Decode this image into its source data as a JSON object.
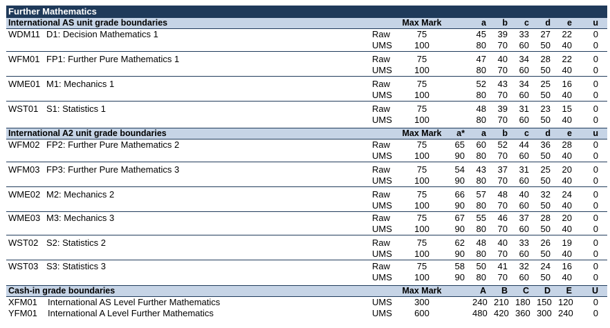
{
  "title": "Further Mathematics",
  "as_header": {
    "label": "International AS unit grade boundaries",
    "max_mark": "Max Mark",
    "grades": [
      "",
      "a",
      "b",
      "c",
      "d",
      "e",
      "u"
    ]
  },
  "as_units": [
    {
      "code": "WDM11",
      "name": "D1: Decision Mathematics 1",
      "raw": {
        "type": "Raw",
        "max": "75",
        "g": [
          "",
          "45",
          "39",
          "33",
          "27",
          "22",
          "0"
        ]
      },
      "ums": {
        "type": "UMS",
        "max": "100",
        "g": [
          "",
          "80",
          "70",
          "60",
          "50",
          "40",
          "0"
        ]
      }
    },
    {
      "code": "WFM01",
      "name": "FP1: Further Pure Mathematics 1",
      "raw": {
        "type": "Raw",
        "max": "75",
        "g": [
          "",
          "47",
          "40",
          "34",
          "28",
          "22",
          "0"
        ]
      },
      "ums": {
        "type": "UMS",
        "max": "100",
        "g": [
          "",
          "80",
          "70",
          "60",
          "50",
          "40",
          "0"
        ]
      }
    },
    {
      "code": "WME01",
      "name": "M1: Mechanics 1",
      "raw": {
        "type": "Raw",
        "max": "75",
        "g": [
          "",
          "52",
          "43",
          "34",
          "25",
          "16",
          "0"
        ]
      },
      "ums": {
        "type": "UMS",
        "max": "100",
        "g": [
          "",
          "80",
          "70",
          "60",
          "50",
          "40",
          "0"
        ]
      }
    },
    {
      "code": "WST01",
      "name": "S1: Statistics 1",
      "raw": {
        "type": "Raw",
        "max": "75",
        "g": [
          "",
          "48",
          "39",
          "31",
          "23",
          "15",
          "0"
        ]
      },
      "ums": {
        "type": "UMS",
        "max": "100",
        "g": [
          "",
          "80",
          "70",
          "60",
          "50",
          "40",
          "0"
        ]
      }
    }
  ],
  "a2_header": {
    "label": "International A2 unit grade boundaries",
    "max_mark": "Max Mark",
    "grades": [
      "a*",
      "a",
      "b",
      "c",
      "d",
      "e",
      "u"
    ]
  },
  "a2_units": [
    {
      "code": "WFM02",
      "name": "FP2: Further Pure Mathematics 2",
      "raw": {
        "type": "Raw",
        "max": "75",
        "g": [
          "65",
          "60",
          "52",
          "44",
          "36",
          "28",
          "0"
        ]
      },
      "ums": {
        "type": "UMS",
        "max": "100",
        "g": [
          "90",
          "80",
          "70",
          "60",
          "50",
          "40",
          "0"
        ]
      }
    },
    {
      "code": "WFM03",
      "name": "FP3: Further Pure Mathematics 3",
      "raw": {
        "type": "Raw",
        "max": "75",
        "g": [
          "54",
          "43",
          "37",
          "31",
          "25",
          "20",
          "0"
        ]
      },
      "ums": {
        "type": "UMS",
        "max": "100",
        "g": [
          "90",
          "80",
          "70",
          "60",
          "50",
          "40",
          "0"
        ]
      }
    },
    {
      "code": "WME02",
      "name": "M2: Mechanics 2",
      "raw": {
        "type": "Raw",
        "max": "75",
        "g": [
          "66",
          "57",
          "48",
          "40",
          "32",
          "24",
          "0"
        ]
      },
      "ums": {
        "type": "UMS",
        "max": "100",
        "g": [
          "90",
          "80",
          "70",
          "60",
          "50",
          "40",
          "0"
        ]
      }
    },
    {
      "code": "WME03",
      "name": "M3: Mechanics 3",
      "raw": {
        "type": "Raw",
        "max": "75",
        "g": [
          "67",
          "55",
          "46",
          "37",
          "28",
          "20",
          "0"
        ]
      },
      "ums": {
        "type": "UMS",
        "max": "100",
        "g": [
          "90",
          "80",
          "70",
          "60",
          "50",
          "40",
          "0"
        ]
      }
    },
    {
      "code": "WST02",
      "name": "S2: Statistics 2",
      "raw": {
        "type": "Raw",
        "max": "75",
        "g": [
          "62",
          "48",
          "40",
          "33",
          "26",
          "19",
          "0"
        ]
      },
      "ums": {
        "type": "UMS",
        "max": "100",
        "g": [
          "90",
          "80",
          "70",
          "60",
          "50",
          "40",
          "0"
        ]
      }
    },
    {
      "code": "WST03",
      "name": "S3: Statistics 3",
      "raw": {
        "type": "Raw",
        "max": "75",
        "g": [
          "58",
          "50",
          "41",
          "32",
          "24",
          "16",
          "0"
        ]
      },
      "ums": {
        "type": "UMS",
        "max": "100",
        "g": [
          "90",
          "80",
          "70",
          "60",
          "50",
          "40",
          "0"
        ]
      }
    }
  ],
  "cash_header": {
    "label": "Cash-in grade boundaries",
    "max_mark": "Max Mark",
    "grades": [
      "",
      "A",
      "B",
      "C",
      "D",
      "E",
      "U"
    ]
  },
  "cash_rows": [
    {
      "code": "XFM01",
      "name": "International AS Level Further Mathematics",
      "type": "UMS",
      "max": "300",
      "g": [
        "",
        "240",
        "210",
        "180",
        "150",
        "120",
        "0"
      ]
    },
    {
      "code": "YFM01",
      "name": "International A Level Further Mathematics",
      "type": "UMS",
      "max": "600",
      "g": [
        "",
        "480",
        "420",
        "360",
        "300",
        "240",
        "0"
      ]
    }
  ]
}
